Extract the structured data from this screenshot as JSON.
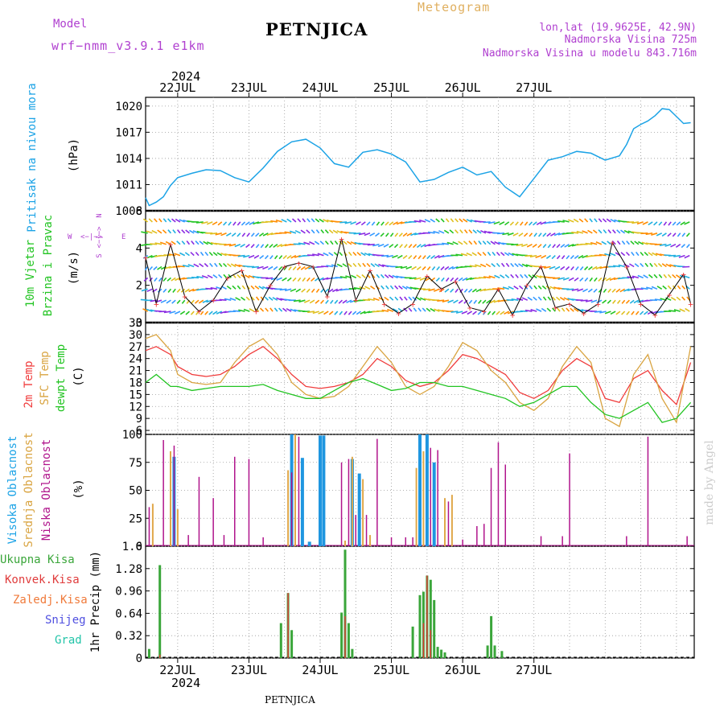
{
  "header": {
    "model_label": "Model",
    "model_name": "wrf−nmm_v3.9.1  e1km",
    "station": "PETNJICA",
    "product": "Meteogram",
    "lonlat": "lon,lat (19.9625E, 42.9N)",
    "altitude": "Nadmorska Visina 725m",
    "model_altitude": "Nadmorska Visina u modelu 843.716m",
    "footer_station": "PETNJICA",
    "credit": "made by Angel"
  },
  "time_axis": {
    "year_top": "2024",
    "year_bottom": "2024",
    "days": [
      "22JUL",
      "23JUL",
      "24JUL",
      "25JUL",
      "26JUL",
      "27JUL"
    ]
  },
  "colors": {
    "pressure": "#1ca3e6",
    "temp2m": "#f03c3c",
    "sfc": "#d9a441",
    "dewpt": "#22c422",
    "high_cloud": "#1f96e0",
    "mid_cloud": "#e0a84a",
    "low_cloud": "#b0148c",
    "total_precip": "#3aa63a",
    "conv_precip": "#e03c3c",
    "frozen": "#f07a3a",
    "snow": "#5050e0",
    "graupel": "#22c4a8",
    "wind_labels": "#b040d0"
  },
  "panels": {
    "pressure": {
      "label": "Pritisak na nivou mora",
      "unit": "(hPa)",
      "ticks": [
        "1008",
        "1011",
        "1014",
        "1017",
        "1020"
      ]
    },
    "wind": {
      "label1": "10m Vjetar",
      "label2": "Brzina i Pravac",
      "unit": "(m/s)",
      "ticks": [
        "0",
        "2",
        "4",
        "6"
      ],
      "compass_n": "N",
      "compass_w": "W",
      "compass_e": "E",
      "compass_s": "S",
      "compass_arrows": "<−|−>"
    },
    "temperature": {
      "label_2m": "2m Temp",
      "label_sfc": "SFC Temp",
      "label_dew": "dewpt Temp",
      "unit": "(C)",
      "ticks": [
        "6",
        "9",
        "12",
        "15",
        "18",
        "21",
        "24",
        "27",
        "30",
        "33"
      ]
    },
    "cloud": {
      "label_high": "Visoka Oblacnost",
      "label_mid": "Srednja Oblacnost",
      "label_low": "Niska Oblacnost",
      "unit": "(%)",
      "ticks": [
        "0",
        "25",
        "50",
        "75",
        "100"
      ]
    },
    "precip": {
      "legend_total": "Ukupna Kisa",
      "legend_conv": "Konvek.Kisa",
      "legend_frozen": "Zaledj.Kisa",
      "legend_snow": "Snijeg",
      "legend_graupel": "Grad",
      "ylabel": "1hr Precip (mm)",
      "ticks": [
        "0",
        "0.32",
        "0.64",
        "0.96",
        "1.28",
        "1.6"
      ]
    }
  },
  "chart_data": [
    {
      "type": "line",
      "title": "Pritisak na nivou mora",
      "ylabel": "(hPa)",
      "ylim": [
        1008,
        1021
      ],
      "x_unit": "days since 21 JUL 2024 00Z",
      "series": [
        {
          "name": "pressure",
          "x": [
            0.55,
            0.6,
            0.7,
            0.8,
            0.9,
            1.0,
            1.2,
            1.4,
            1.6,
            1.8,
            2.0,
            2.2,
            2.4,
            2.6,
            2.8,
            3.0,
            3.2,
            3.4,
            3.6,
            3.8,
            4.0,
            4.2,
            4.4,
            4.6,
            4.8,
            5.0,
            5.2,
            5.4,
            5.6,
            5.8,
            6.0,
            6.2,
            6.4,
            6.6,
            6.8,
            7.0,
            7.2,
            7.3,
            7.4,
            7.5,
            7.6,
            7.7,
            7.8,
            7.9,
            8.0,
            8.1,
            8.2
          ],
          "values": [
            1009.5,
            1008.6,
            1009.0,
            1009.6,
            1010.9,
            1011.8,
            1012.3,
            1012.7,
            1012.6,
            1011.8,
            1011.3,
            1012.9,
            1014.8,
            1015.9,
            1016.2,
            1015.2,
            1013.4,
            1013.0,
            1014.7,
            1015.0,
            1014.5,
            1013.6,
            1011.3,
            1011.6,
            1012.4,
            1013.0,
            1012.1,
            1012.5,
            1010.7,
            1009.6,
            1011.7,
            1013.8,
            1014.2,
            1014.8,
            1014.6,
            1013.8,
            1014.3,
            1015.6,
            1017.4,
            1017.9,
            1018.3,
            1018.9,
            1019.7,
            1019.6,
            1018.8,
            1018.0,
            1018.1
          ]
        }
      ]
    },
    {
      "type": "scatter",
      "title": "10m Vjetar Brzina i Pravac",
      "ylabel": "(m/s)",
      "ylim": [
        0,
        6
      ],
      "x_unit": "days since 21 JUL 2024 00Z",
      "series": [
        {
          "name": "wind speed",
          "x": [
            0.55,
            0.7,
            0.9,
            1.1,
            1.3,
            1.5,
            1.7,
            1.9,
            2.1,
            2.3,
            2.5,
            2.7,
            2.9,
            3.1,
            3.3,
            3.5,
            3.7,
            3.9,
            4.1,
            4.3,
            4.5,
            4.7,
            4.9,
            5.1,
            5.3,
            5.5,
            5.7,
            5.9,
            6.1,
            6.3,
            6.5,
            6.7,
            6.9,
            7.1,
            7.3,
            7.5,
            7.7,
            7.9,
            8.1,
            8.2
          ],
          "values": [
            3.5,
            1.0,
            4.2,
            1.4,
            0.6,
            1.2,
            2.4,
            2.8,
            0.6,
            2.0,
            3.0,
            3.2,
            3.0,
            1.4,
            4.5,
            1.2,
            2.8,
            1.0,
            0.5,
            1.0,
            2.5,
            1.8,
            2.2,
            0.8,
            0.6,
            1.8,
            0.4,
            2.0,
            3.0,
            0.8,
            1.0,
            0.5,
            1.0,
            4.3,
            3.0,
            1.0,
            0.4,
            1.5,
            2.6,
            1.0
          ]
        }
      ]
    },
    {
      "type": "line",
      "title": "Temperature",
      "ylabel": "(C)",
      "ylim": [
        5,
        33
      ],
      "x_unit": "days since 21 JUL 2024 00Z",
      "series": [
        {
          "name": "2m Temp",
          "x": [
            0.55,
            0.7,
            0.9,
            1.0,
            1.2,
            1.4,
            1.6,
            1.8,
            2.0,
            2.2,
            2.4,
            2.6,
            2.8,
            3.0,
            3.2,
            3.4,
            3.6,
            3.8,
            4.0,
            4.2,
            4.4,
            4.6,
            4.8,
            5.0,
            5.2,
            5.4,
            5.6,
            5.8,
            6.0,
            6.2,
            6.4,
            6.6,
            6.8,
            7.0,
            7.2,
            7.4,
            7.6,
            7.8,
            8.0,
            8.2
          ],
          "values": [
            26,
            27,
            25,
            22,
            20,
            19.5,
            20,
            22,
            25,
            27,
            24,
            20,
            17,
            16.5,
            17,
            18,
            20,
            24,
            22,
            18.5,
            17,
            18,
            21,
            25,
            24,
            22,
            20,
            15.5,
            14,
            16,
            21,
            24,
            22,
            14,
            13,
            19,
            21,
            16,
            12.5,
            23
          ]
        },
        {
          "name": "SFC Temp",
          "x": [
            0.55,
            0.7,
            0.9,
            1.0,
            1.2,
            1.4,
            1.6,
            1.8,
            2.0,
            2.2,
            2.4,
            2.6,
            2.8,
            3.0,
            3.2,
            3.4,
            3.6,
            3.8,
            4.0,
            4.2,
            4.4,
            4.6,
            4.8,
            5.0,
            5.2,
            5.4,
            5.6,
            5.8,
            6.0,
            6.2,
            6.4,
            6.6,
            6.8,
            7.0,
            7.2,
            7.4,
            7.6,
            7.8,
            8.0,
            8.2
          ],
          "values": [
            29,
            30,
            26,
            20,
            18,
            17.5,
            18,
            23,
            27,
            29,
            25,
            18,
            15,
            14,
            14.5,
            17,
            22,
            27,
            23,
            17,
            15,
            17,
            22,
            28,
            26,
            21,
            18,
            13,
            11,
            14,
            22,
            27,
            23,
            9,
            7,
            20,
            25,
            14,
            8,
            27
          ]
        },
        {
          "name": "dewpt Temp",
          "x": [
            0.55,
            0.7,
            0.9,
            1.0,
            1.2,
            1.4,
            1.6,
            1.8,
            2.0,
            2.2,
            2.4,
            2.6,
            2.8,
            3.0,
            3.2,
            3.4,
            3.6,
            3.8,
            4.0,
            4.2,
            4.4,
            4.6,
            4.8,
            5.0,
            5.2,
            5.4,
            5.6,
            5.8,
            6.0,
            6.2,
            6.4,
            6.6,
            6.8,
            7.0,
            7.2,
            7.4,
            7.6,
            7.8,
            8.0,
            8.2
          ],
          "values": [
            18,
            20,
            17,
            17,
            16,
            16.5,
            17,
            17,
            17,
            17.5,
            16,
            15,
            14,
            14,
            16,
            18,
            19,
            17.5,
            16,
            16.5,
            18,
            18,
            17,
            17,
            16,
            15,
            14,
            12,
            13,
            15,
            17,
            17,
            13,
            10,
            9,
            11,
            13,
            8,
            9,
            13
          ]
        }
      ]
    },
    {
      "type": "bar",
      "title": "Oblacnost",
      "ylabel": "(%)",
      "ylim": [
        0,
        100
      ],
      "x_unit": "days since 21 JUL 2024 00Z",
      "series": [
        {
          "name": "Visoka Oblacnost",
          "x": [
            0.95,
            2.6,
            2.75,
            2.85,
            3.0,
            3.05,
            3.45,
            3.55,
            4.4,
            4.5,
            4.6
          ],
          "values": [
            80,
            100,
            79,
            4,
            99,
            99,
            78,
            65,
            100,
            100,
            75
          ]
        },
        {
          "name": "Srednja Oblacnost",
          "x": [
            0.65,
            0.9,
            1.0,
            2.55,
            2.65,
            3.35,
            3.45,
            3.6,
            3.7,
            4.35,
            4.45,
            4.75,
            4.85
          ],
          "values": [
            38,
            85,
            33,
            68,
            100,
            5,
            80,
            60,
            10,
            70,
            85,
            43,
            46
          ]
        },
        {
          "name": "Niska Oblacnost",
          "x": [
            0.6,
            0.8,
            0.95,
            1.15,
            1.3,
            1.5,
            1.65,
            1.8,
            2.0,
            2.2,
            2.6,
            2.7,
            3.3,
            3.4,
            3.5,
            3.65,
            3.8,
            4.0,
            4.2,
            4.3,
            4.55,
            4.65,
            4.8,
            5.0,
            5.2,
            5.3,
            5.4,
            5.5,
            5.6,
            6.1,
            6.4,
            6.5,
            7.3,
            7.6,
            8.15
          ],
          "values": [
            35,
            95,
            90,
            10,
            62,
            43,
            10,
            80,
            78,
            8,
            66,
            98,
            75,
            78,
            28,
            28,
            96,
            8,
            8,
            8,
            88,
            86,
            40,
            6,
            18,
            20,
            70,
            93,
            73,
            9,
            9,
            83,
            9,
            98,
            9
          ]
        }
      ]
    },
    {
      "type": "bar",
      "title": "1hr Precip",
      "ylabel": "1hr Precip (mm)",
      "ylim": [
        0,
        1.6
      ],
      "x_unit": "days since 21 JUL 2024 00Z",
      "series": [
        {
          "name": "Ukupna Kisa",
          "x": [
            0.6,
            0.75,
            2.45,
            2.55,
            2.6,
            3.3,
            3.35,
            3.4,
            3.45,
            4.3,
            4.4,
            4.45,
            4.5,
            4.55,
            4.6,
            4.65,
            4.7,
            4.75,
            5.35,
            5.4,
            5.45,
            5.55
          ],
          "values": [
            0.13,
            1.33,
            0.5,
            0.93,
            0.4,
            0.65,
            1.55,
            0.5,
            0.13,
            0.45,
            0.9,
            0.95,
            1.18,
            1.12,
            0.83,
            0.16,
            0.12,
            0.08,
            0.18,
            0.6,
            0.18,
            0.1
          ]
        },
        {
          "name": "Konvek.Kisa",
          "x": [
            0.75,
            2.55,
            3.35,
            4.45,
            4.5,
            4.55
          ],
          "values": [
            0.05,
            0.93,
            0.6,
            0.5,
            1.18,
            0.4
          ]
        }
      ]
    }
  ]
}
